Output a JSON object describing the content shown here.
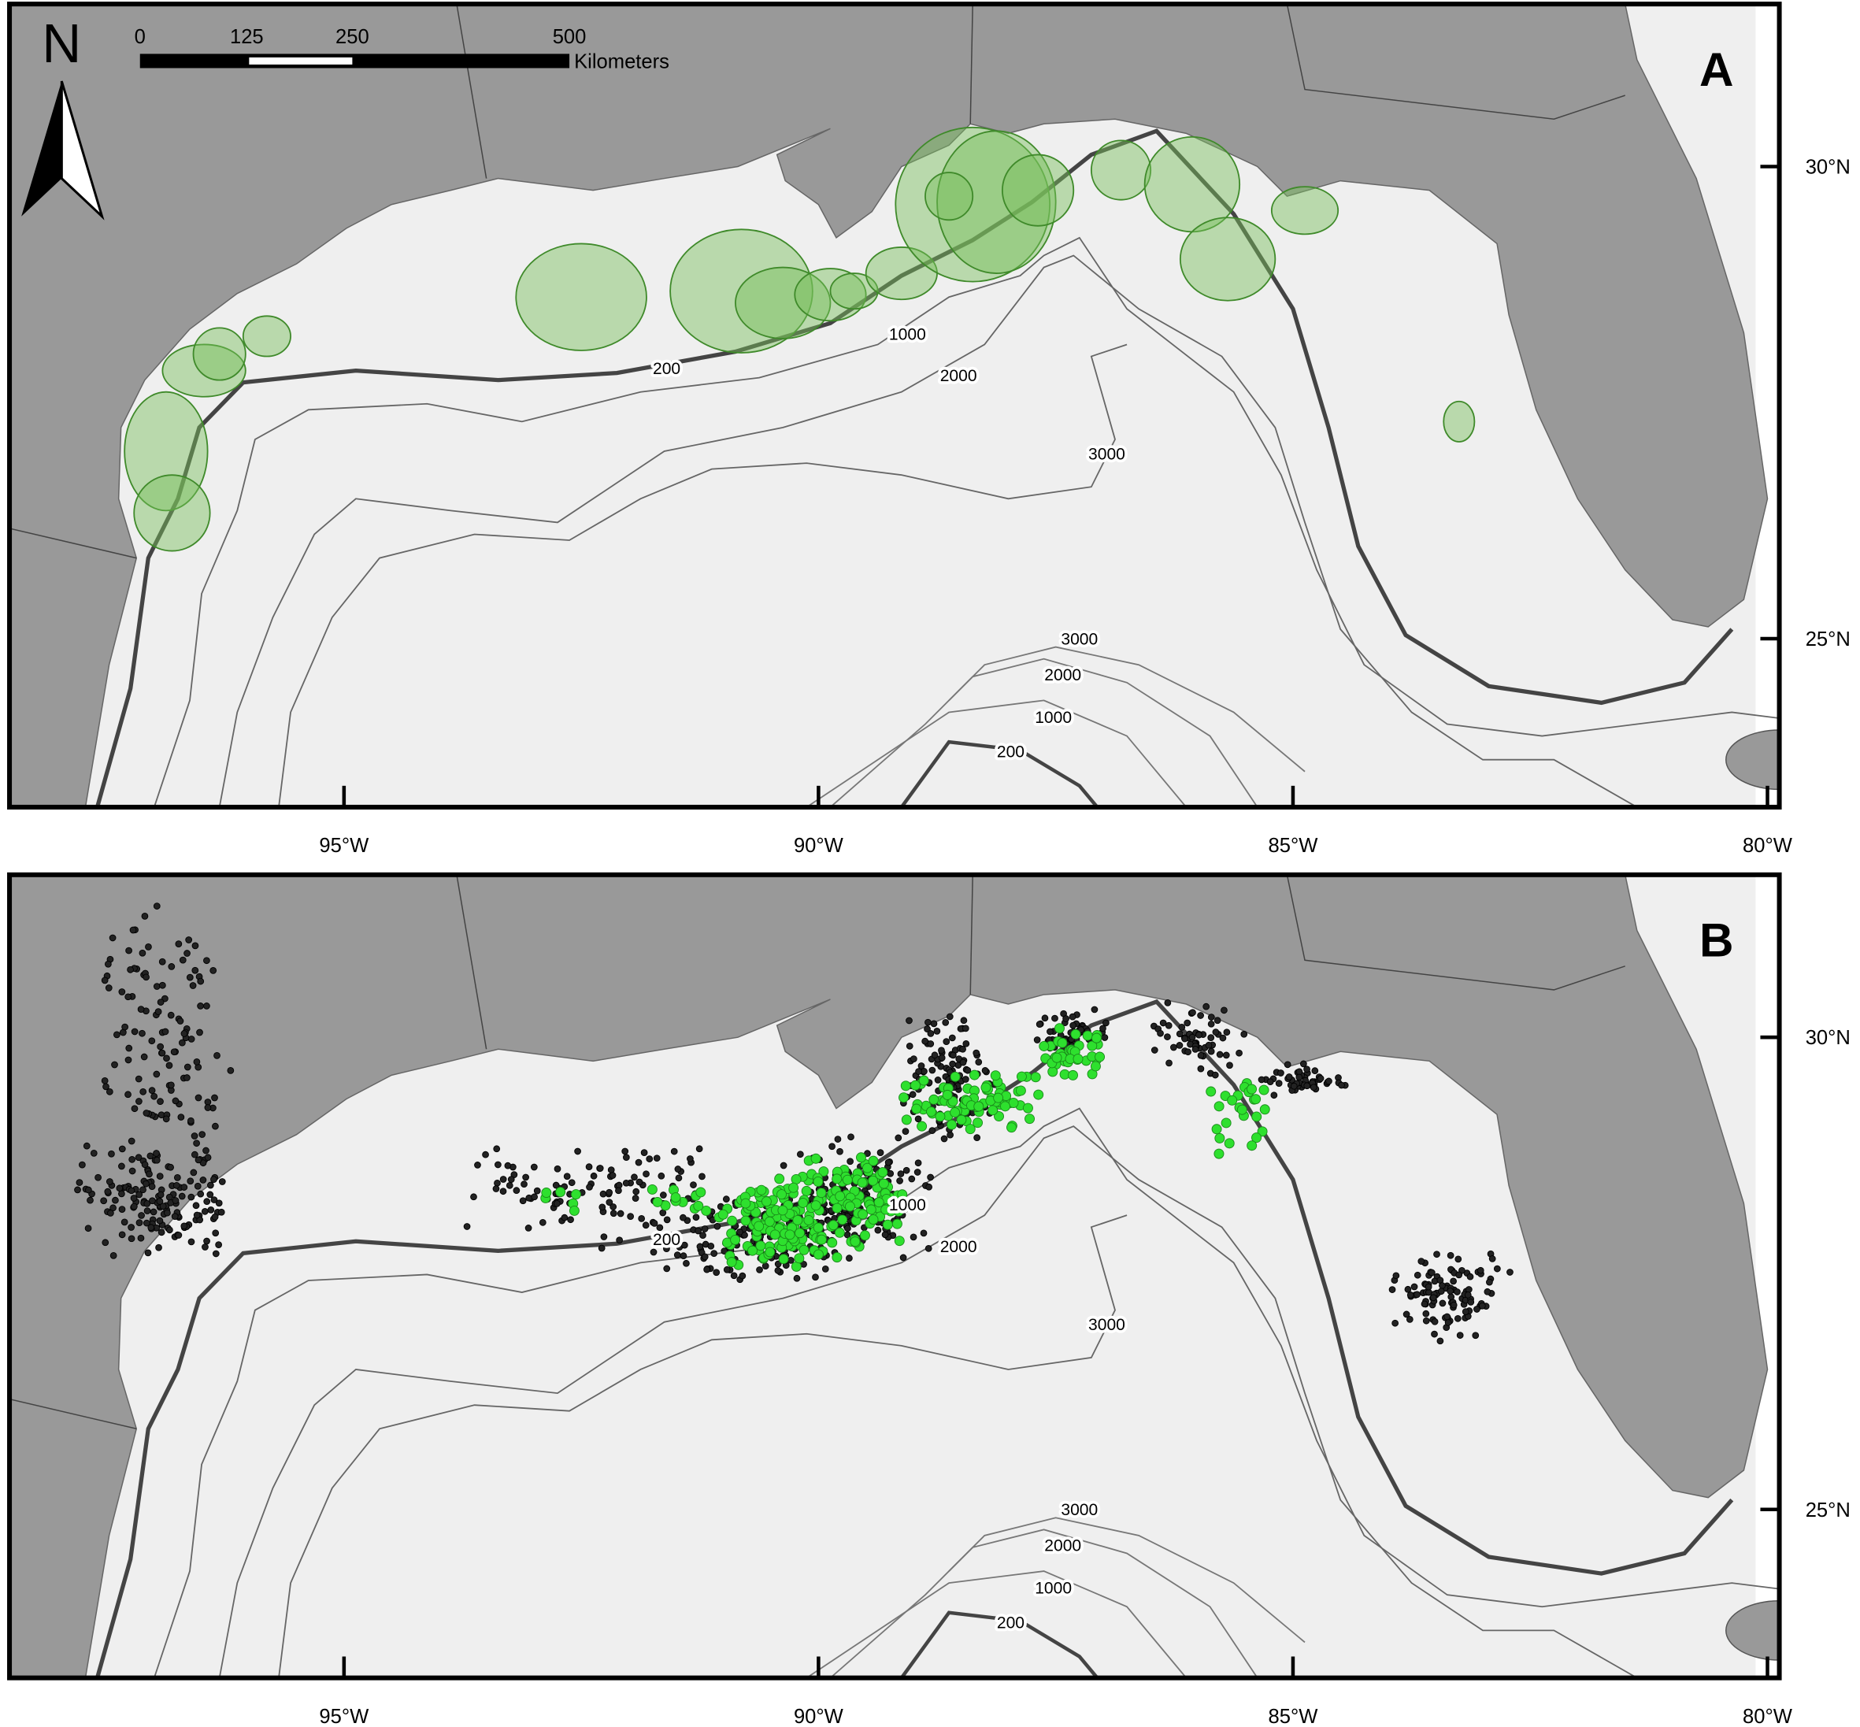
{
  "north": "N",
  "scale_bar": {
    "ticks": [
      "0",
      "125",
      "250",
      "500"
    ],
    "unit": "Kilometers"
  },
  "panels": [
    {
      "label": "A",
      "latitude_labels": [
        "30°N",
        "25°N"
      ],
      "longitude_labels": [
        "95°W",
        "90°W",
        "85°W",
        "80°W"
      ],
      "contour_labels": [
        "200",
        "1000",
        "2000",
        "3000",
        "3000",
        "2000",
        "1000",
        "200"
      ]
    },
    {
      "label": "B",
      "latitude_labels": [
        "30°N",
        "25°N"
      ],
      "longitude_labels": [
        "95°W",
        "90°W",
        "85°W",
        "80°W"
      ],
      "contour_labels": [
        "200",
        "1000",
        "2000",
        "3000",
        "3000",
        "2000",
        "1000",
        "200"
      ]
    }
  ]
}
